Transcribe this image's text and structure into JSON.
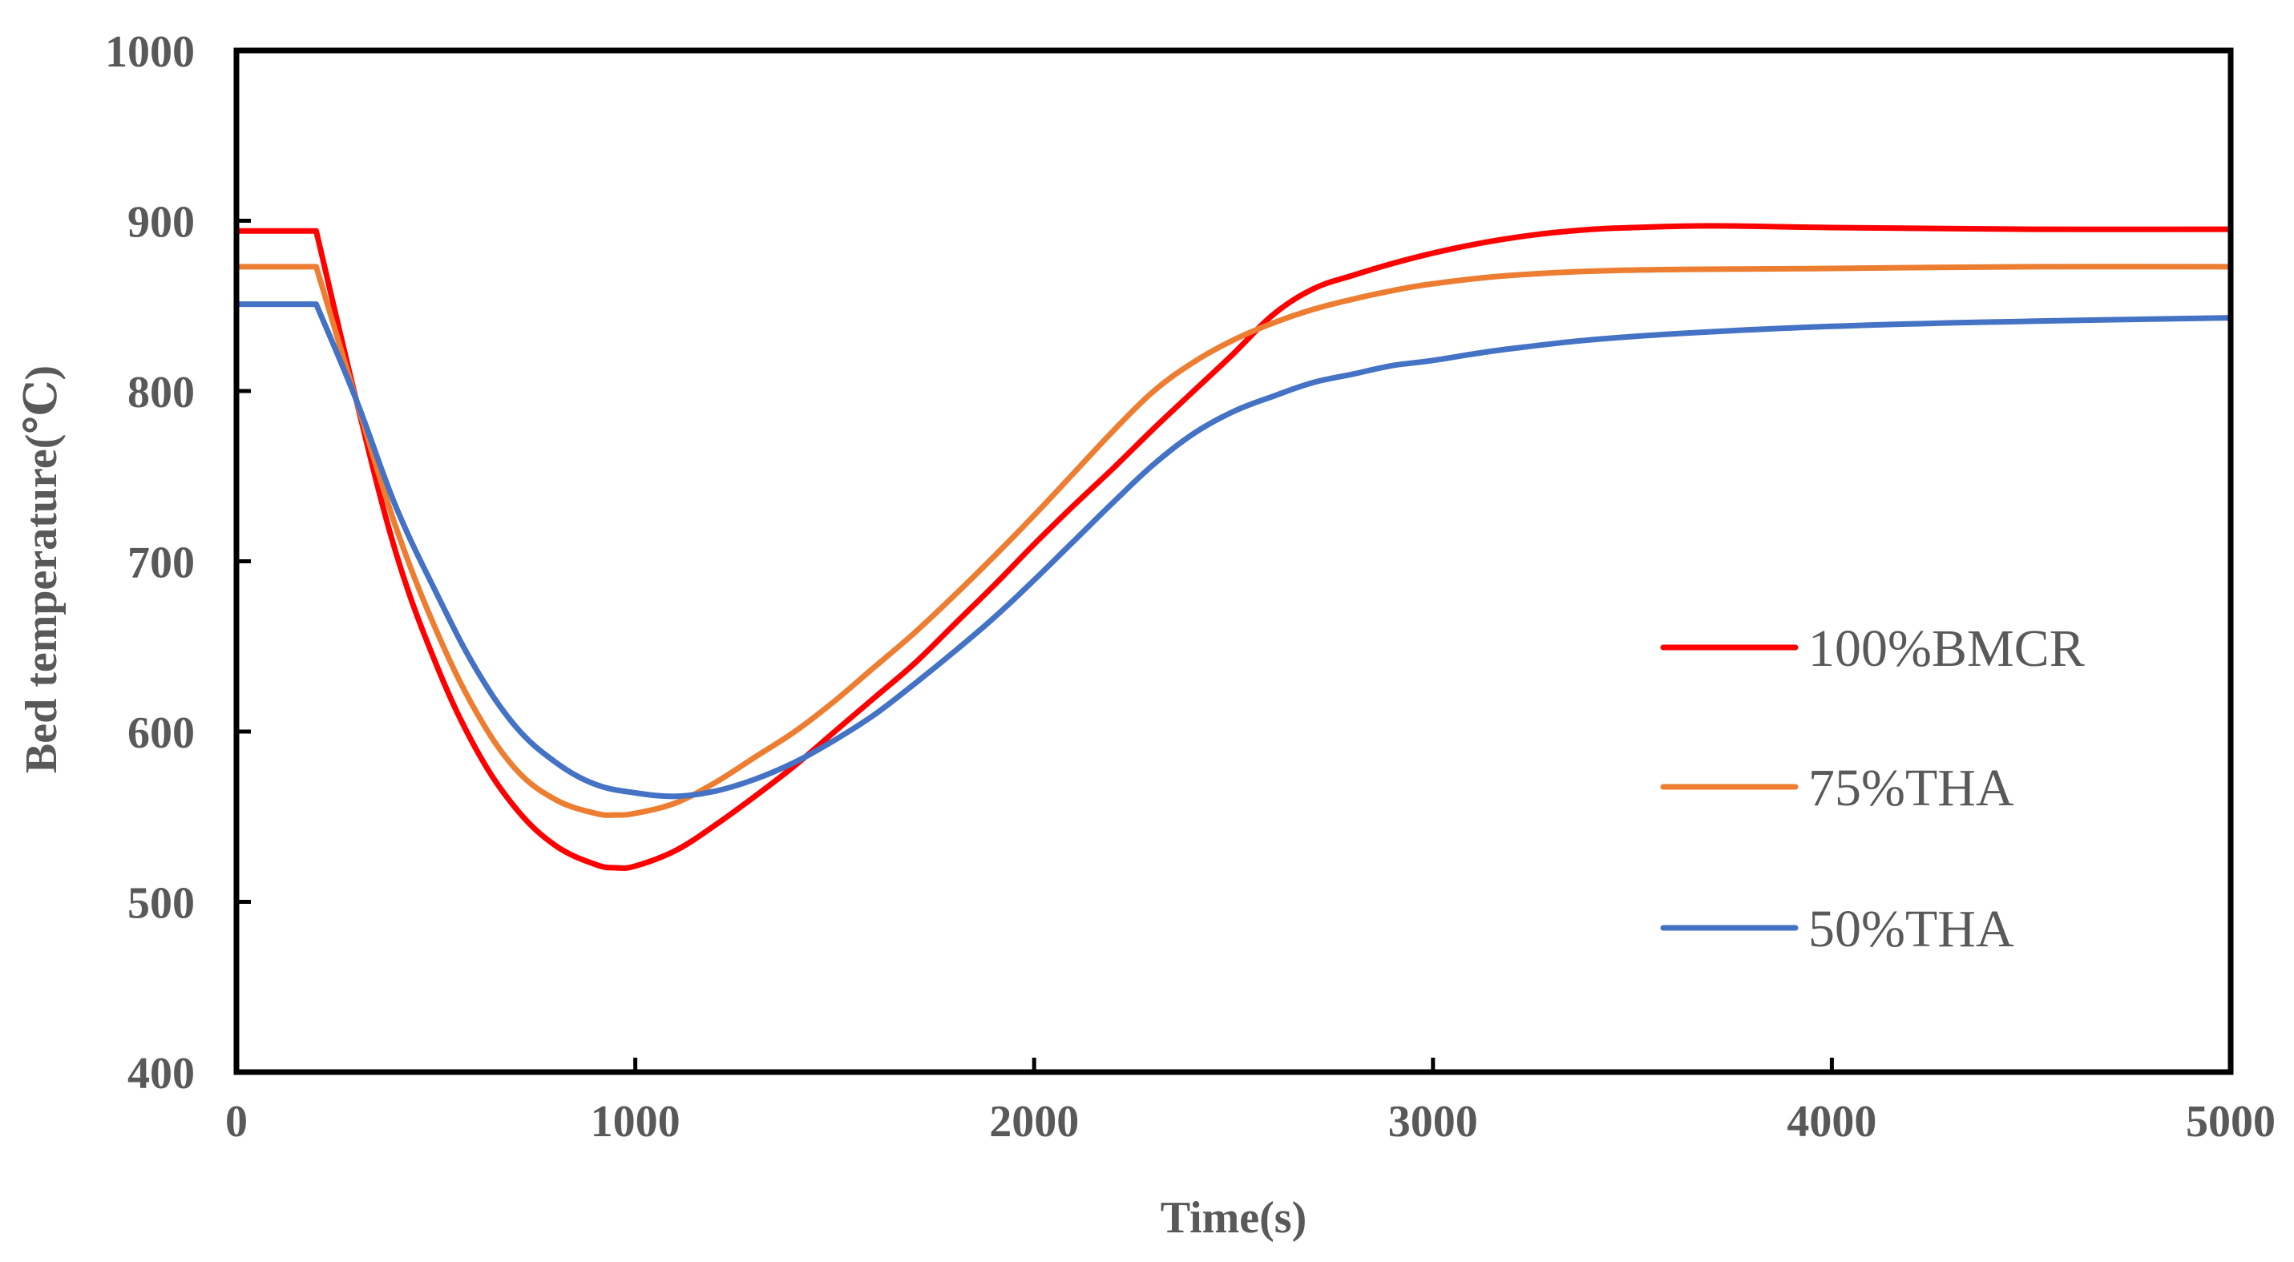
{
  "chart_data": {
    "type": "line",
    "title": "",
    "xlabel": "Time(s)",
    "ylabel": "Bed temperature(℃)",
    "xlim": [
      0,
      5000
    ],
    "ylim": [
      400,
      1000
    ],
    "xticks": [
      0,
      1000,
      2000,
      3000,
      4000,
      5000
    ],
    "yticks": [
      400,
      500,
      600,
      700,
      800,
      900,
      1000
    ],
    "xtick_labels": [
      "0",
      "1000",
      "2000",
      "3000",
      "4000",
      "5000"
    ],
    "ytick_labels": [
      "400",
      "500",
      "600",
      "700",
      "800",
      "900",
      "1000"
    ],
    "grid": false,
    "legend_position": "right",
    "series": [
      {
        "name": "100%BMCR",
        "color": "#ff0000",
        "x": [
          0,
          200,
          300,
          400,
          500,
          600,
          700,
          800,
          900,
          950,
          1000,
          1100,
          1200,
          1300,
          1400,
          1500,
          1600,
          1700,
          1800,
          1900,
          2000,
          2100,
          2200,
          2300,
          2400,
          2500,
          2600,
          2700,
          2800,
          2900,
          3000,
          3100,
          3200,
          3300,
          3400,
          3500,
          3700,
          4000,
          4500,
          5000
        ],
        "y": [
          894,
          894,
          795,
          705,
          640,
          590,
          555,
          533,
          522,
          520,
          521,
          530,
          545,
          562,
          580,
          600,
          620,
          640,
          663,
          686,
          710,
          733,
          755,
          778,
          800,
          822,
          845,
          860,
          868,
          875,
          881,
          886,
          890,
          893,
          895,
          896,
          897,
          896,
          895,
          895
        ]
      },
      {
        "name": "75%THA",
        "color": "#ed7d31",
        "x": [
          0,
          200,
          300,
          400,
          500,
          600,
          700,
          800,
          900,
          950,
          1000,
          1100,
          1200,
          1300,
          1400,
          1500,
          1600,
          1700,
          1800,
          1900,
          2000,
          2100,
          2200,
          2300,
          2400,
          2500,
          2600,
          2700,
          2800,
          2900,
          3000,
          3200,
          3500,
          4000,
          4500,
          5000
        ],
        "y": [
          873,
          873,
          795,
          720,
          660,
          612,
          578,
          560,
          552,
          551,
          552,
          558,
          570,
          585,
          600,
          618,
          638,
          658,
          680,
          703,
          727,
          752,
          777,
          800,
          817,
          830,
          840,
          848,
          854,
          859,
          863,
          868,
          871,
          872,
          873,
          873
        ]
      },
      {
        "name": "50%THA",
        "color": "#4472c4",
        "x": [
          0,
          200,
          300,
          400,
          500,
          600,
          700,
          800,
          900,
          1000,
          1100,
          1200,
          1300,
          1400,
          1500,
          1600,
          1700,
          1800,
          1900,
          2000,
          2100,
          2200,
          2300,
          2400,
          2500,
          2600,
          2700,
          2800,
          2900,
          3000,
          3200,
          3500,
          4000,
          4500,
          5000
        ],
        "y": [
          851,
          851,
          795,
          732,
          682,
          637,
          603,
          582,
          569,
          564,
          562,
          565,
          572,
          582,
          595,
          610,
          628,
          647,
          667,
          689,
          712,
          735,
          757,
          775,
          788,
          797,
          805,
          810,
          815,
          818,
          825,
          832,
          838,
          841,
          843
        ]
      }
    ]
  }
}
